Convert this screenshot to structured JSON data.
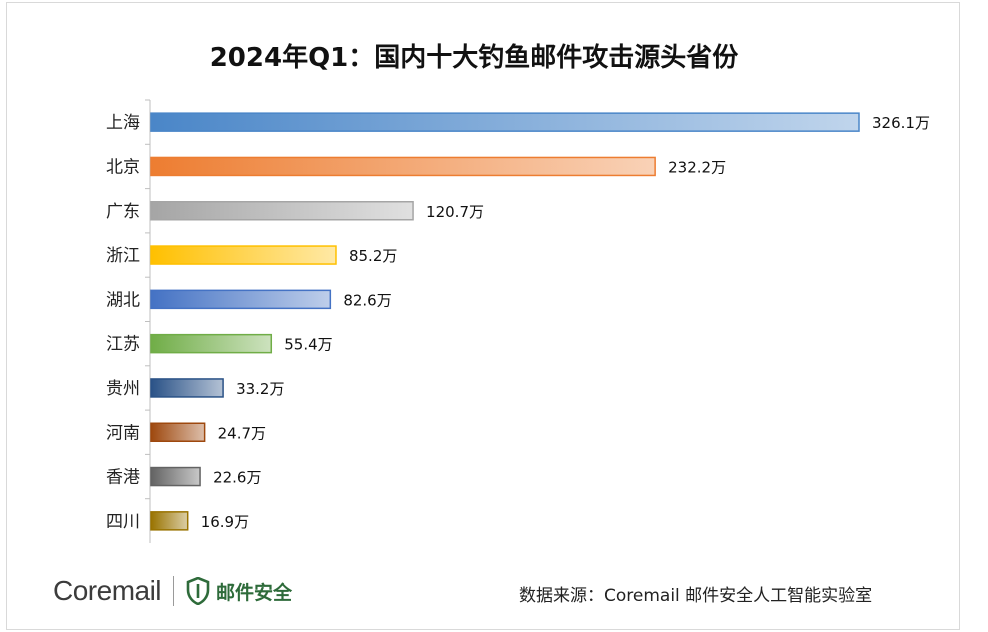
{
  "chart_data": {
    "type": "bar",
    "orientation": "horizontal",
    "title": "2024年Q1：国内十大钓鱼邮件攻击源头省份",
    "categories": [
      "上海",
      "北京",
      "广东",
      "浙江",
      "湖北",
      "江苏",
      "贵州",
      "河南",
      "香港",
      "四川"
    ],
    "values": [
      326.1,
      232.2,
      120.7,
      85.2,
      82.6,
      55.4,
      33.2,
      24.7,
      22.6,
      16.9
    ],
    "value_labels": [
      "326.1万",
      "232.2万",
      "120.7万",
      "85.2万",
      "82.6万",
      "55.4万",
      "33.2万",
      "24.7万",
      "22.6万",
      "16.9万"
    ],
    "unit": "万",
    "xlim": [
      0,
      326.1
    ],
    "grid": false,
    "legend": "none",
    "bar_colors": [
      "#4a86c8",
      "#ed7d31",
      "#a5a5a5",
      "#ffc000",
      "#4472c4",
      "#70ad47",
      "#2a5287",
      "#9e480e",
      "#636363",
      "#997300"
    ]
  },
  "footer": {
    "brand": "Coremail",
    "brand_sub": "邮件安全",
    "source": "数据来源：Coremail 邮件安全人工智能实验室",
    "brand_color": "#2e6b3a"
  }
}
